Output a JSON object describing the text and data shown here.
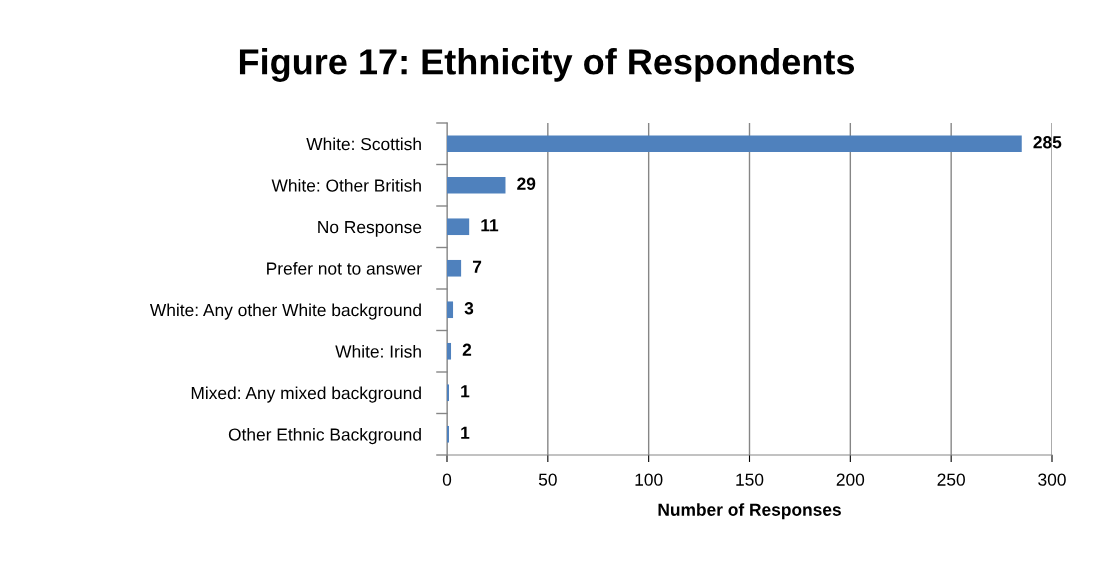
{
  "chart_data": {
    "type": "bar",
    "orientation": "horizontal",
    "title": "Figure 17: Ethnicity of Respondents",
    "xlabel": "Number of Responses",
    "categories": [
      "White: Scottish",
      "White: Other British",
      "No Response",
      "Prefer not to answer",
      "White: Any other White background",
      "White: Irish",
      "Mixed: Any mixed background",
      "Other Ethnic Background"
    ],
    "values": [
      285,
      29,
      11,
      7,
      3,
      2,
      1,
      1
    ],
    "color": "#4f81bd",
    "xlim": [
      0,
      300
    ],
    "xticks": [
      0,
      50,
      100,
      150,
      200,
      250,
      300
    ],
    "grid": "x",
    "data_labels": true
  }
}
